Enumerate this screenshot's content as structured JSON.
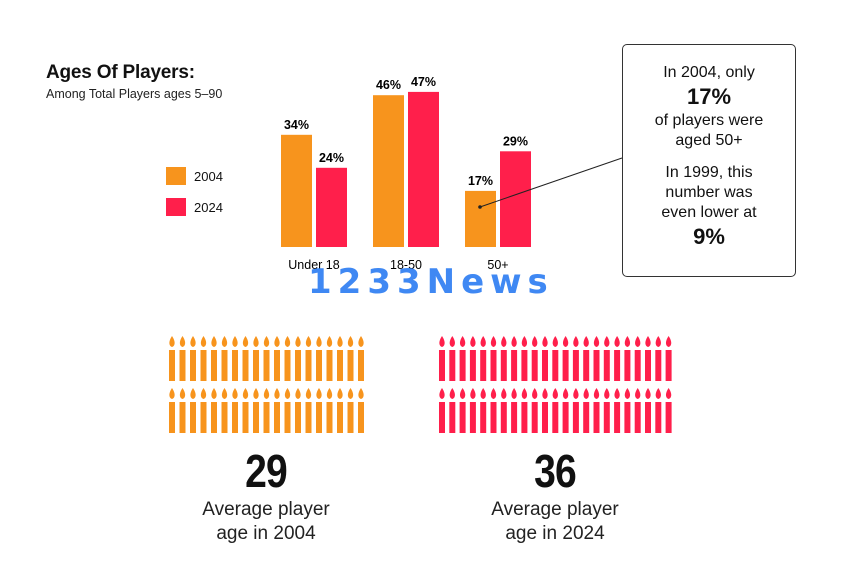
{
  "title": "Ages Of Players:",
  "subtitle": "Among Total Players ages 5–90",
  "legend": [
    {
      "label": "2004",
      "color": "#F7941D"
    },
    {
      "label": "2024",
      "color": "#FF1F4B"
    }
  ],
  "chart_data": {
    "type": "bar",
    "categories": [
      "Under 18",
      "18-50",
      "50+"
    ],
    "series": [
      {
        "name": "2004",
        "values": [
          34,
          46,
          17
        ],
        "labels": [
          "34%",
          "46%",
          "17%"
        ],
        "color": "#F7941D"
      },
      {
        "name": "2024",
        "values": [
          24,
          47,
          29
        ],
        "labels": [
          "24%",
          "47%",
          "29%"
        ],
        "color": "#FF1F4B"
      }
    ],
    "title": "Ages Of Players:",
    "subtitle": "Among Total Players ages 5–90",
    "ylim": [
      0,
      50
    ],
    "grid": false,
    "legend_position": "left"
  },
  "callout": {
    "line1": "In 2004, only",
    "big1": "17%",
    "line2": "of players were",
    "line3": "aged 50+",
    "line4": "In 1999, this",
    "line5": "number was",
    "line6": "even lower at",
    "big2": "9%"
  },
  "watermark": "1233News",
  "averages": [
    {
      "value": "29",
      "line1": "Average player",
      "line2": "age in 2004",
      "color": "#F7941D"
    },
    {
      "value": "36",
      "line1": "Average player",
      "line2": "age in 2024",
      "color": "#FF1F4B"
    }
  ]
}
